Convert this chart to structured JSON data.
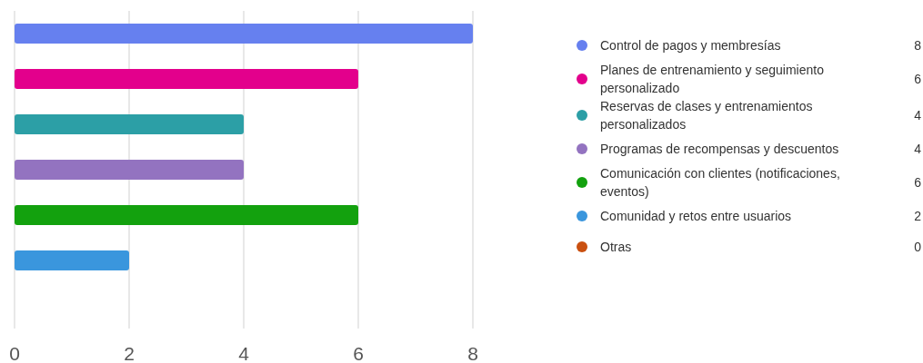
{
  "chart_data": {
    "type": "bar",
    "orientation": "horizontal",
    "categories": [
      null,
      null,
      null,
      null,
      null,
      null,
      null
    ],
    "series": [
      {
        "name": "Control de pagos y membresías",
        "color": "#6680ef",
        "values": [
          8,
          null,
          null,
          null,
          null,
          null,
          null
        ]
      },
      {
        "name": "Planes de entrenamiento y seguimiento personalizado",
        "color": "#e3008c",
        "values": [
          null,
          6,
          null,
          null,
          null,
          null,
          null
        ]
      },
      {
        "name": "Reservas de clases y entrenamientos personalizados",
        "color": "#2c9fa6",
        "values": [
          null,
          null,
          4,
          null,
          null,
          null,
          null
        ]
      },
      {
        "name": "Programas de recompensas y descuentos",
        "color": "#9373c0",
        "values": [
          null,
          null,
          null,
          4,
          null,
          null,
          null
        ]
      },
      {
        "name": "Comunicación con clientes (notificaciones, eventos)",
        "color": "#13a10e",
        "values": [
          null,
          null,
          null,
          null,
          6,
          null,
          null
        ]
      },
      {
        "name": "Comunidad y retos entre usuarios",
        "color": "#3a96dd",
        "values": [
          null,
          null,
          null,
          null,
          null,
          2,
          null
        ]
      },
      {
        "name": "Otras",
        "color": "#ca5010",
        "values": [
          null,
          null,
          null,
          null,
          null,
          null,
          0
        ]
      }
    ],
    "annotations": [
      "8",
      "6",
      "4",
      "4",
      "6",
      "2",
      "0"
    ],
    "xlim": [
      0,
      8
    ],
    "xticks": [
      0,
      2,
      4,
      6,
      8
    ],
    "grid": "x",
    "legend": "right",
    "tick_labels": "x"
  }
}
